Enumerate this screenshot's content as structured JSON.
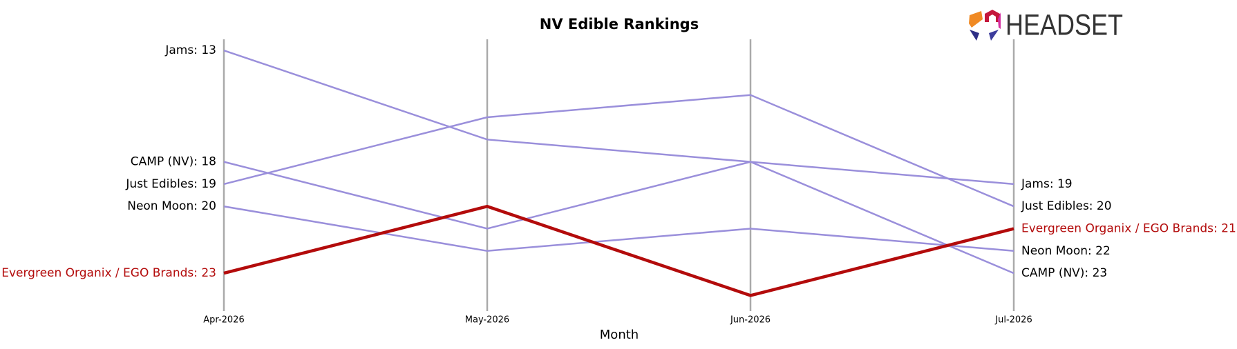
{
  "chart_data": {
    "type": "bump",
    "title": "NV Edible Rankings",
    "x_label": "Month",
    "logo": "HEADSET",
    "categories": [
      "Apr-2026",
      "May-2026",
      "Jun-2026",
      "Jul-2026"
    ],
    "ylim": [
      24.7,
      12.5
    ],
    "inverted": true,
    "series": [
      {
        "name": "Jams",
        "color": "#9a8fdb",
        "values": [
          13,
          17,
          18,
          19
        ],
        "value_labels": [
          "Jams: 13",
          null,
          null,
          "Jams: 19"
        ]
      },
      {
        "name": "Just Edibles",
        "color": "#9a8fdb",
        "values": [
          19,
          16,
          15,
          20
        ],
        "value_labels": [
          "Just Edibles: 19",
          null,
          null,
          "Just Edibles: 20"
        ]
      },
      {
        "name": "CAMP (NV)",
        "color": "#9a8fdb",
        "values": [
          18,
          21,
          18,
          23
        ],
        "value_labels": [
          "CAMP (NV): 18",
          null,
          null,
          "CAMP (NV): 23"
        ]
      },
      {
        "name": "Neon Moon",
        "color": "#9a8fdb",
        "values": [
          20,
          22,
          21,
          22
        ],
        "value_labels": [
          "Neon Moon: 20",
          null,
          null,
          "Neon Moon: 22"
        ]
      },
      {
        "name": "Evergreen Organix / EGO Brands",
        "color": "#b30b0b",
        "highlight": true,
        "values": [
          23,
          20,
          24,
          21
        ],
        "value_labels": [
          "Evergreen Organix / EGO Brands: 23",
          null,
          null,
          "Evergreen Organix / EGO Brands: 21"
        ]
      }
    ]
  }
}
